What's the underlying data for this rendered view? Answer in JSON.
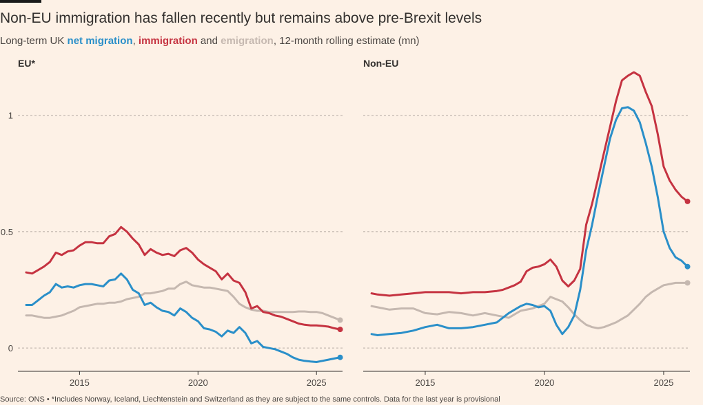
{
  "title": "Non-EU immigration has fallen recently but remains above pre-Brexit levels",
  "subtitle": {
    "prefix": "Long-term UK ",
    "net": "net migration",
    "sep1": ", ",
    "imm": "immigration",
    "sep2": " and ",
    "emi": "emigration",
    "suffix": ", 12-month rolling estimate (mn)"
  },
  "footer": "Source: ONS • *Includes Norway, Iceland, Liechtenstein and Switzerland as they are subject to the same controls. Data for the last year is provisional",
  "colors": {
    "net": "#2a8fc9",
    "immigration": "#c53341",
    "emigration": "#c5b8b0",
    "grid": "#b5aba4",
    "axis": "#33302e"
  },
  "chart_data": [
    {
      "type": "line",
      "title": "EU*",
      "xlim": [
        2012.4,
        2026.1
      ],
      "ylim": [
        -0.1,
        1.2
      ],
      "x_ticks": [
        2015,
        2020,
        2025
      ],
      "y_ticks": [
        0,
        0.5,
        1
      ],
      "y_tick_labels": [
        "0",
        "0.5",
        "1"
      ],
      "grid": "horizontal dashed",
      "series": [
        {
          "name": "immigration",
          "color": "#c53341",
          "x": [
            2012.75,
            2013.0,
            2013.25,
            2013.5,
            2013.75,
            2014.0,
            2014.25,
            2014.5,
            2014.75,
            2015.0,
            2015.25,
            2015.5,
            2015.75,
            2016.0,
            2016.25,
            2016.5,
            2016.75,
            2017.0,
            2017.25,
            2017.5,
            2017.75,
            2018.0,
            2018.25,
            2018.5,
            2018.75,
            2019.0,
            2019.25,
            2019.5,
            2019.75,
            2020.0,
            2020.25,
            2020.5,
            2020.75,
            2021.0,
            2021.25,
            2021.5,
            2021.75,
            2022.0,
            2022.25,
            2022.5,
            2022.75,
            2023.0,
            2023.25,
            2023.5,
            2023.75,
            2024.0,
            2024.25,
            2024.5,
            2024.75,
            2025.0,
            2025.25,
            2025.5,
            2025.75,
            2026.0
          ],
          "y": [
            0.325,
            0.32,
            0.335,
            0.35,
            0.37,
            0.41,
            0.4,
            0.415,
            0.42,
            0.44,
            0.455,
            0.455,
            0.45,
            0.45,
            0.48,
            0.49,
            0.52,
            0.5,
            0.47,
            0.445,
            0.4,
            0.425,
            0.41,
            0.4,
            0.405,
            0.395,
            0.42,
            0.43,
            0.41,
            0.38,
            0.36,
            0.345,
            0.33,
            0.295,
            0.32,
            0.29,
            0.28,
            0.24,
            0.17,
            0.18,
            0.155,
            0.15,
            0.14,
            0.135,
            0.125,
            0.115,
            0.105,
            0.1,
            0.097,
            0.097,
            0.095,
            0.092,
            0.085,
            0.08
          ]
        },
        {
          "name": "net migration",
          "color": "#2a8fc9",
          "x": [
            2012.75,
            2013.0,
            2013.25,
            2013.5,
            2013.75,
            2014.0,
            2014.25,
            2014.5,
            2014.75,
            2015.0,
            2015.25,
            2015.5,
            2015.75,
            2016.0,
            2016.25,
            2016.5,
            2016.75,
            2017.0,
            2017.25,
            2017.5,
            2017.75,
            2018.0,
            2018.25,
            2018.5,
            2018.75,
            2019.0,
            2019.25,
            2019.5,
            2019.75,
            2020.0,
            2020.25,
            2020.5,
            2020.75,
            2021.0,
            2021.25,
            2021.5,
            2021.75,
            2022.0,
            2022.25,
            2022.5,
            2022.75,
            2023.0,
            2023.25,
            2023.5,
            2023.75,
            2024.0,
            2024.25,
            2024.5,
            2024.75,
            2025.0,
            2025.25,
            2025.5,
            2025.75,
            2026.0
          ],
          "y": [
            0.185,
            0.185,
            0.205,
            0.225,
            0.24,
            0.275,
            0.26,
            0.265,
            0.26,
            0.27,
            0.275,
            0.275,
            0.27,
            0.265,
            0.29,
            0.295,
            0.32,
            0.295,
            0.25,
            0.235,
            0.185,
            0.195,
            0.175,
            0.16,
            0.155,
            0.14,
            0.17,
            0.155,
            0.13,
            0.115,
            0.085,
            0.08,
            0.07,
            0.05,
            0.075,
            0.065,
            0.09,
            0.065,
            0.02,
            0.03,
            0.005,
            0.0,
            -0.005,
            -0.015,
            -0.025,
            -0.04,
            -0.05,
            -0.055,
            -0.058,
            -0.06,
            -0.055,
            -0.05,
            -0.045,
            -0.04
          ]
        },
        {
          "name": "emigration",
          "color": "#c5b8b0",
          "x": [
            2012.75,
            2013.0,
            2013.25,
            2013.5,
            2013.75,
            2014.0,
            2014.25,
            2014.5,
            2014.75,
            2015.0,
            2015.25,
            2015.5,
            2015.75,
            2016.0,
            2016.25,
            2016.5,
            2016.75,
            2017.0,
            2017.25,
            2017.5,
            2017.75,
            2018.0,
            2018.25,
            2018.5,
            2018.75,
            2019.0,
            2019.25,
            2019.5,
            2019.75,
            2020.0,
            2020.25,
            2020.5,
            2020.75,
            2021.0,
            2021.25,
            2021.5,
            2021.75,
            2022.0,
            2022.25,
            2022.5,
            2022.75,
            2023.0,
            2023.25,
            2023.5,
            2023.75,
            2024.0,
            2024.25,
            2024.5,
            2024.75,
            2025.0,
            2025.25,
            2025.5,
            2025.75,
            2026.0
          ],
          "y": [
            0.14,
            0.14,
            0.135,
            0.13,
            0.13,
            0.135,
            0.14,
            0.15,
            0.16,
            0.175,
            0.18,
            0.185,
            0.19,
            0.19,
            0.195,
            0.195,
            0.2,
            0.21,
            0.215,
            0.22,
            0.235,
            0.235,
            0.24,
            0.245,
            0.255,
            0.255,
            0.275,
            0.285,
            0.27,
            0.265,
            0.26,
            0.26,
            0.255,
            0.25,
            0.245,
            0.22,
            0.19,
            0.175,
            0.165,
            0.16,
            0.16,
            0.155,
            0.155,
            0.155,
            0.155,
            0.155,
            0.157,
            0.157,
            0.155,
            0.155,
            0.15,
            0.14,
            0.13,
            0.12
          ]
        }
      ]
    },
    {
      "type": "line",
      "title": "Non-EU",
      "xlim": [
        2012.4,
        2026.1
      ],
      "ylim": [
        -0.1,
        1.2
      ],
      "x_ticks": [
        2015,
        2020,
        2025
      ],
      "y_ticks": [
        0,
        0.5,
        1
      ],
      "grid": "horizontal dashed",
      "series": [
        {
          "name": "immigration",
          "color": "#c53341",
          "x": [
            2012.75,
            2013.0,
            2013.5,
            2014.0,
            2014.5,
            2015.0,
            2015.5,
            2016.0,
            2016.5,
            2017.0,
            2017.5,
            2018.0,
            2018.25,
            2018.5,
            2018.75,
            2019.0,
            2019.25,
            2019.5,
            2019.75,
            2020.0,
            2020.25,
            2020.5,
            2020.75,
            2021.0,
            2021.25,
            2021.5,
            2021.75,
            2022.0,
            2022.25,
            2022.5,
            2022.75,
            2023.0,
            2023.25,
            2023.5,
            2023.75,
            2024.0,
            2024.25,
            2024.5,
            2024.75,
            2025.0,
            2025.25,
            2025.5,
            2025.75,
            2026.0
          ],
          "y": [
            0.235,
            0.23,
            0.225,
            0.23,
            0.235,
            0.24,
            0.24,
            0.24,
            0.235,
            0.24,
            0.24,
            0.245,
            0.25,
            0.26,
            0.27,
            0.285,
            0.33,
            0.345,
            0.35,
            0.36,
            0.38,
            0.35,
            0.29,
            0.265,
            0.29,
            0.34,
            0.53,
            0.62,
            0.73,
            0.84,
            0.95,
            1.06,
            1.15,
            1.17,
            1.185,
            1.17,
            1.1,
            1.04,
            0.92,
            0.78,
            0.72,
            0.68,
            0.65,
            0.63
          ]
        },
        {
          "name": "net migration",
          "color": "#2a8fc9",
          "x": [
            2012.75,
            2013.0,
            2013.5,
            2014.0,
            2014.5,
            2015.0,
            2015.5,
            2016.0,
            2016.5,
            2017.0,
            2017.5,
            2018.0,
            2018.25,
            2018.5,
            2018.75,
            2019.0,
            2019.25,
            2019.5,
            2019.75,
            2020.0,
            2020.25,
            2020.5,
            2020.75,
            2021.0,
            2021.25,
            2021.5,
            2021.75,
            2022.0,
            2022.25,
            2022.5,
            2022.75,
            2023.0,
            2023.25,
            2023.5,
            2023.75,
            2024.0,
            2024.25,
            2024.5,
            2024.75,
            2025.0,
            2025.25,
            2025.5,
            2025.75,
            2026.0
          ],
          "y": [
            0.06,
            0.055,
            0.06,
            0.065,
            0.075,
            0.09,
            0.1,
            0.085,
            0.085,
            0.09,
            0.1,
            0.11,
            0.13,
            0.15,
            0.165,
            0.18,
            0.19,
            0.185,
            0.175,
            0.18,
            0.16,
            0.1,
            0.06,
            0.09,
            0.14,
            0.25,
            0.42,
            0.53,
            0.66,
            0.78,
            0.9,
            0.98,
            1.03,
            1.035,
            1.02,
            0.97,
            0.88,
            0.78,
            0.65,
            0.5,
            0.43,
            0.39,
            0.375,
            0.35
          ]
        },
        {
          "name": "emigration",
          "color": "#c5b8b0",
          "x": [
            2012.75,
            2013.0,
            2013.5,
            2014.0,
            2014.5,
            2015.0,
            2015.5,
            2016.0,
            2016.5,
            2017.0,
            2017.5,
            2018.0,
            2018.5,
            2019.0,
            2019.5,
            2019.75,
            2020.0,
            2020.25,
            2020.5,
            2020.75,
            2021.0,
            2021.25,
            2021.5,
            2021.75,
            2022.0,
            2022.25,
            2022.5,
            2022.75,
            2023.0,
            2023.25,
            2023.5,
            2023.75,
            2024.0,
            2024.25,
            2024.5,
            2024.75,
            2025.0,
            2025.25,
            2025.5,
            2025.75,
            2026.0
          ],
          "y": [
            0.18,
            0.175,
            0.165,
            0.17,
            0.17,
            0.15,
            0.145,
            0.155,
            0.15,
            0.14,
            0.15,
            0.14,
            0.13,
            0.16,
            0.17,
            0.18,
            0.19,
            0.22,
            0.21,
            0.2,
            0.175,
            0.145,
            0.12,
            0.1,
            0.09,
            0.085,
            0.09,
            0.1,
            0.11,
            0.125,
            0.14,
            0.165,
            0.19,
            0.22,
            0.24,
            0.255,
            0.27,
            0.275,
            0.28,
            0.28,
            0.28
          ]
        }
      ]
    }
  ]
}
